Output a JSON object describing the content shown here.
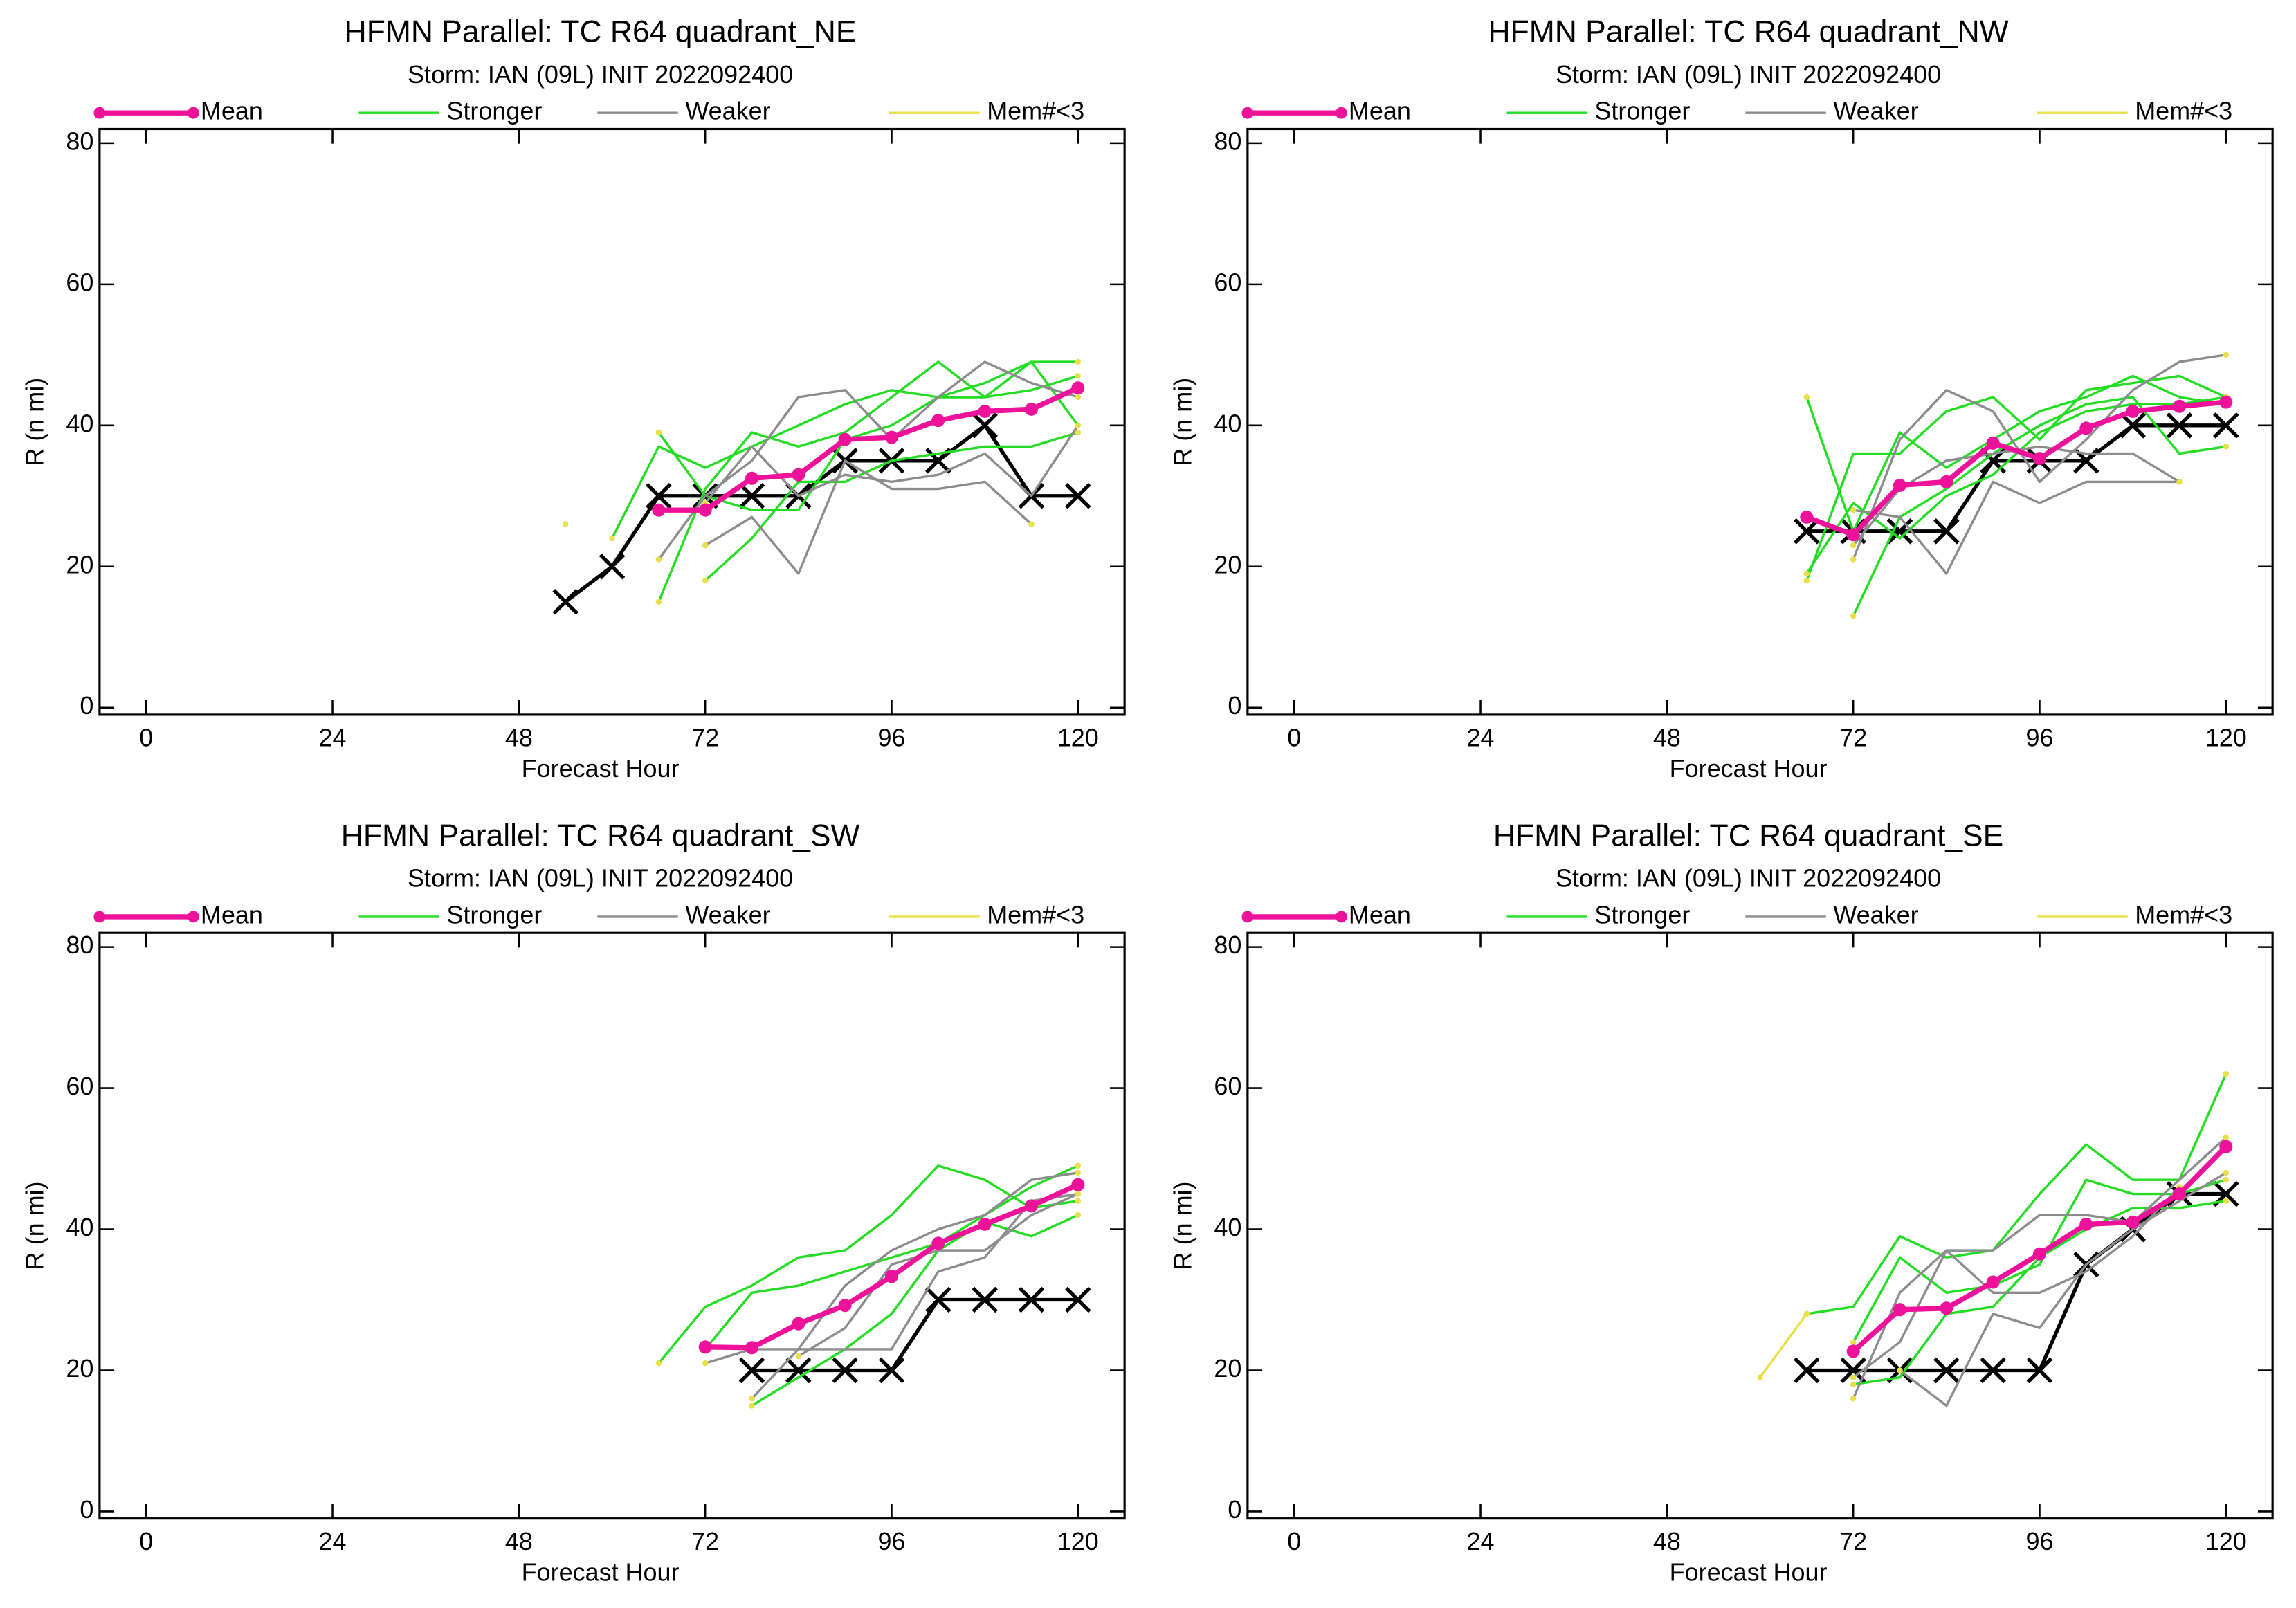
{
  "chart_data": [
    {
      "type": "line",
      "title": "HFMN Parallel: TC  R64 quadrant_NE",
      "subtitle": "Storm: IAN (09L) INIT 2022092400",
      "x_label": "Forecast Hour",
      "y_label": "R (n mi)",
      "x": [
        54,
        60,
        66,
        72,
        78,
        84,
        90,
        96,
        102,
        108,
        114,
        120
      ],
      "xlim": [
        -6,
        126
      ],
      "ylim": [
        -1,
        82
      ],
      "xticks": [
        0,
        24,
        48,
        72,
        96,
        120
      ],
      "yticks": [
        0,
        20,
        40,
        60,
        80
      ],
      "end_marker_color": "#e8e04a",
      "series": [
        {
          "color": "#000000",
          "marker": "x",
          "line_width": 2.5,
          "members": [
            [
              15,
              20,
              30,
              30,
              30,
              30,
              35,
              35,
              35,
              40,
              30,
              30
            ]
          ]
        },
        {
          "name": "Stronger",
          "color": "#22dd22",
          "line_width": 1.6,
          "members": [
            [
              null,
              24,
              37,
              34,
              37,
              40,
              43,
              45,
              44,
              44,
              45,
              47
            ],
            [
              null,
              null,
              15,
              31,
              39,
              37,
              39,
              44,
              49,
              44,
              49,
              49
            ],
            [
              null,
              null,
              39,
              30,
              28,
              28,
              38,
              40,
              44,
              46,
              49,
              40
            ],
            [
              null,
              null,
              null,
              18,
              24,
              32,
              32,
              35,
              36,
              37,
              37,
              39
            ]
          ]
        },
        {
          "name": "Weaker",
          "color": "#8c8c8c",
          "line_width": 1.6,
          "members": [
            [
              null,
              null,
              21,
              30,
              35,
              44,
              45,
              38,
              44,
              49,
              46,
              44
            ],
            [
              null,
              null,
              null,
              23,
              27,
              19,
              35,
              31,
              31,
              32,
              26,
              null
            ],
            [
              null,
              null,
              null,
              29,
              37,
              30,
              33,
              32,
              33,
              36,
              30,
              40
            ]
          ]
        },
        {
          "name": "Mem#<3",
          "color": "#e8e04a",
          "line_width": 1.6,
          "marker": "dot",
          "members": [
            [
              26,
              null,
              null,
              null,
              null,
              null,
              null,
              null,
              null,
              null,
              null,
              null
            ]
          ]
        },
        {
          "name": "Mean",
          "color": "#ee1199",
          "marker": "dot",
          "line_width": 3.5,
          "members": [
            [
              null,
              null,
              28,
              28,
              32.5,
              33,
              38,
              38.3,
              40.7,
              42,
              42.3,
              45.3
            ]
          ]
        }
      ]
    },
    {
      "type": "line",
      "title": "HFMN Parallel: TC  R64 quadrant_NW",
      "subtitle": "Storm: IAN (09L) INIT 2022092400",
      "x_label": "Forecast Hour",
      "y_label": "R (n mi)",
      "x": [
        54,
        60,
        66,
        72,
        78,
        84,
        90,
        96,
        102,
        108,
        114,
        120
      ],
      "xlim": [
        -6,
        126
      ],
      "ylim": [
        -1,
        82
      ],
      "xticks": [
        0,
        24,
        48,
        72,
        96,
        120
      ],
      "yticks": [
        0,
        20,
        40,
        60,
        80
      ],
      "end_marker_color": "#e8e04a",
      "series": [
        {
          "color": "#000000",
          "marker": "x",
          "line_width": 2.5,
          "members": [
            [
              null,
              null,
              25,
              25,
              25,
              25,
              35,
              35,
              35,
              40,
              40,
              40
            ]
          ]
        },
        {
          "name": "Stronger",
          "color": "#22dd22",
          "line_width": 1.6,
          "members": [
            [
              null,
              null,
              44,
              25,
              39,
              34,
              38,
              42,
              44,
              47,
              44,
              43
            ],
            [
              null,
              null,
              18,
              36,
              36,
              42,
              44,
              38,
              45,
              46,
              47,
              44
            ],
            [
              null,
              null,
              null,
              13,
              27,
              31,
              36,
              40,
              43,
              44,
              36,
              37
            ],
            [
              null,
              null,
              19,
              29,
              24,
              30,
              33,
              39,
              42,
              43,
              43,
              44
            ]
          ]
        },
        {
          "name": "Weaker",
          "color": "#8c8c8c",
          "line_width": 1.6,
          "members": [
            [
              null,
              null,
              null,
              21,
              38,
              45,
              42,
              32,
              38,
              45,
              49,
              50
            ],
            [
              null,
              null,
              null,
              28,
              27,
              19,
              32,
              29,
              32,
              32,
              32,
              null
            ],
            [
              null,
              null,
              null,
              23,
              31,
              35,
              36,
              37,
              36,
              36,
              32,
              null
            ]
          ]
        },
        {
          "name": "Mem#<3",
          "color": "#e8e04a",
          "line_width": 1.6,
          "marker": "dot",
          "members": []
        },
        {
          "name": "Mean",
          "color": "#ee1199",
          "marker": "dot",
          "line_width": 3.5,
          "members": [
            [
              null,
              null,
              27,
              24.5,
              31.5,
              32,
              37.5,
              35.3,
              39.6,
              42,
              42.7,
              43.3
            ]
          ]
        }
      ]
    },
    {
      "type": "line",
      "title": "HFMN Parallel: TC  R64 quadrant_SW",
      "subtitle": "Storm: IAN (09L) INIT 2022092400",
      "x_label": "Forecast Hour",
      "y_label": "R (n mi)",
      "x": [
        54,
        60,
        66,
        72,
        78,
        84,
        90,
        96,
        102,
        108,
        114,
        120
      ],
      "xlim": [
        -6,
        126
      ],
      "ylim": [
        -1,
        82
      ],
      "xticks": [
        0,
        24,
        48,
        72,
        96,
        120
      ],
      "yticks": [
        0,
        20,
        40,
        60,
        80
      ],
      "end_marker_color": "#e8e04a",
      "series": [
        {
          "color": "#000000",
          "marker": "x",
          "line_width": 2.5,
          "members": [
            [
              null,
              null,
              null,
              null,
              20,
              20,
              20,
              20,
              30,
              30,
              30,
              30
            ]
          ]
        },
        {
          "name": "Stronger",
          "color": "#22dd22",
          "line_width": 1.6,
          "members": [
            [
              null,
              null,
              21,
              29,
              32,
              36,
              37,
              42,
              49,
              47,
              43,
              44
            ],
            [
              null,
              null,
              null,
              23,
              31,
              32,
              34,
              36,
              38,
              42,
              46,
              49
            ],
            [
              null,
              null,
              null,
              null,
              15,
              19,
              23,
              28,
              37,
              41,
              39,
              42
            ]
          ]
        },
        {
          "name": "Weaker",
          "color": "#8c8c8c",
          "line_width": 1.6,
          "members": [
            [
              null,
              null,
              null,
              21,
              23,
              23,
              32,
              37,
              40,
              42,
              47,
              48
            ],
            [
              null,
              null,
              null,
              null,
              16,
              23,
              23,
              23,
              34,
              36,
              44,
              45
            ],
            [
              null,
              null,
              null,
              null,
              null,
              22,
              26,
              35,
              37,
              37,
              42,
              45
            ]
          ]
        },
        {
          "name": "Mem#<3",
          "color": "#e8e04a",
          "line_width": 1.6,
          "marker": "dot",
          "members": []
        },
        {
          "name": "Mean",
          "color": "#ee1199",
          "marker": "dot",
          "line_width": 3.5,
          "members": [
            [
              null,
              null,
              null,
              23.3,
              23.2,
              26.6,
              29.2,
              33.3,
              38,
              40.7,
              43.3,
              46.3
            ]
          ]
        }
      ]
    },
    {
      "type": "line",
      "title": "HFMN Parallel: TC  R64 quadrant_SE",
      "subtitle": "Storm: IAN (09L) INIT 2022092400",
      "x_label": "Forecast Hour",
      "y_label": "R (n mi)",
      "x": [
        54,
        60,
        66,
        72,
        78,
        84,
        90,
        96,
        102,
        108,
        114,
        120
      ],
      "xlim": [
        -6,
        126
      ],
      "ylim": [
        -1,
        82
      ],
      "xticks": [
        0,
        24,
        48,
        72,
        96,
        120
      ],
      "yticks": [
        0,
        20,
        40,
        60,
        80
      ],
      "end_marker_color": "#e8e04a",
      "series": [
        {
          "color": "#000000",
          "marker": "x",
          "line_width": 2.5,
          "members": [
            [
              null,
              null,
              20,
              20,
              20,
              20,
              20,
              20,
              35,
              40,
              45,
              45
            ]
          ]
        },
        {
          "name": "Stronger",
          "color": "#22dd22",
          "line_width": 1.6,
          "members": [
            [
              null,
              null,
              28,
              29,
              39,
              36,
              37,
              45,
              52,
              47,
              47,
              62
            ],
            [
              null,
              null,
              null,
              24,
              36,
              31,
              32,
              35,
              47,
              45,
              45,
              47
            ],
            [
              null,
              null,
              null,
              18,
              19,
              28,
              29,
              36,
              40,
              43,
              43,
              44
            ]
          ]
        },
        {
          "name": "Weaker",
          "color": "#8c8c8c",
          "line_width": 1.6,
          "members": [
            [
              null,
              null,
              null,
              16,
              31,
              37,
              37,
              42,
              42,
              41,
              47,
              53
            ],
            [
              null,
              null,
              null,
              null,
              20,
              15,
              28,
              26,
              35,
              40,
              44,
              48
            ],
            [
              null,
              null,
              null,
              19,
              24,
              37,
              31,
              31,
              34,
              39,
              46,
              null
            ]
          ]
        },
        {
          "name": "Mem#<3",
          "color": "#e8e04a",
          "line_width": 1.6,
          "marker": "dot",
          "members": [
            [
              null,
              19,
              28,
              null,
              null,
              null,
              null,
              null,
              null,
              null,
              null,
              null
            ]
          ]
        },
        {
          "name": "Mean",
          "color": "#ee1199",
          "marker": "dot",
          "line_width": 3.5,
          "members": [
            [
              null,
              null,
              null,
              22.7,
              28.6,
              28.8,
              32.5,
              36.5,
              40.7,
              41,
              45,
              51.7
            ]
          ]
        }
      ]
    }
  ]
}
